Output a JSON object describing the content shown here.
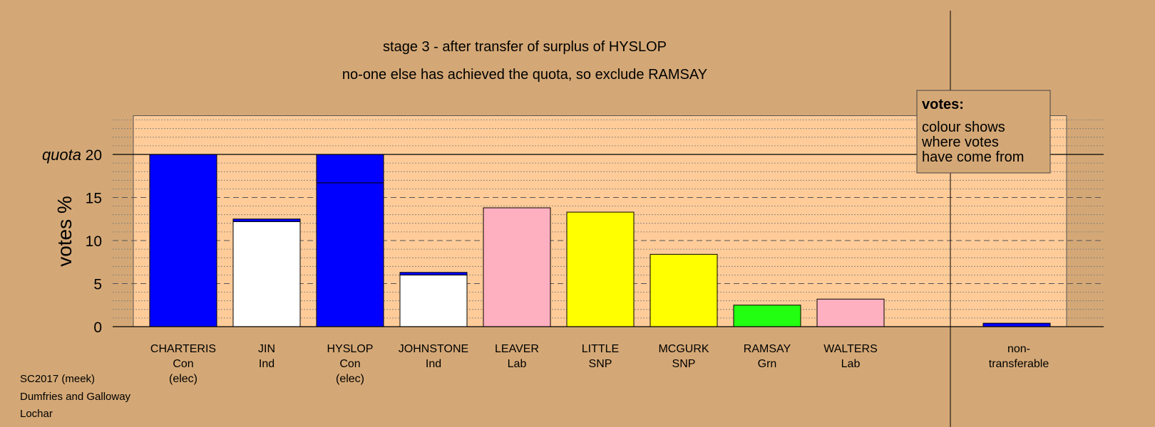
{
  "chart_data": {
    "type": "bar",
    "title": "stage 3 - after transfer of surplus of HYSLOP",
    "subtitle": "no-one else has achieved the quota, so exclude RAMSAY",
    "ylabel": "votes %",
    "quota_label": "quota",
    "quota": 20,
    "ylim": [
      0,
      24.5
    ],
    "yticks": [
      0,
      5,
      10,
      15,
      20
    ],
    "legend": {
      "title": "votes:",
      "lines": [
        "colour shows",
        "where votes",
        "have come from"
      ]
    },
    "colors": {
      "background": "#D4A876",
      "plot_bg": "#FFCC99",
      "Con": "#0000FF",
      "Ind": "#FFFFFF",
      "Lab": "#FFB0C0",
      "SNP": "#FFFF00",
      "Grn": "#22FF11"
    },
    "bars": [
      {
        "name": "CHARTERIS",
        "party": "Con",
        "status": "(elec)",
        "segments": [
          {
            "value": 20.0,
            "color": "#0000FF"
          }
        ]
      },
      {
        "name": "JIN",
        "party": "Ind",
        "status": "",
        "segments": [
          {
            "value": 12.2,
            "color": "#FFFFFF"
          },
          {
            "value": 0.3,
            "color": "#0000FF"
          }
        ]
      },
      {
        "name": "HYSLOP",
        "party": "Con",
        "status": "(elec)",
        "segments": [
          {
            "value": 16.7,
            "color": "#0000FF"
          },
          {
            "value": 3.3,
            "color": "#0000FF"
          }
        ]
      },
      {
        "name": "JOHNSTONE",
        "party": "Ind",
        "status": "",
        "segments": [
          {
            "value": 6.0,
            "color": "#FFFFFF"
          },
          {
            "value": 0.3,
            "color": "#0000FF"
          }
        ]
      },
      {
        "name": "LEAVER",
        "party": "Lab",
        "status": "",
        "segments": [
          {
            "value": 13.8,
            "color": "#FFB0C0"
          }
        ]
      },
      {
        "name": "LITTLE",
        "party": "SNP",
        "status": "",
        "segments": [
          {
            "value": 13.3,
            "color": "#FFFF00"
          }
        ]
      },
      {
        "name": "MCGURK",
        "party": "SNP",
        "status": "",
        "segments": [
          {
            "value": 8.4,
            "color": "#FFFF00"
          }
        ]
      },
      {
        "name": "RAMSAY",
        "party": "Grn",
        "status": "",
        "segments": [
          {
            "value": 2.5,
            "color": "#22FF11"
          }
        ]
      },
      {
        "name": "WALTERS",
        "party": "Lab",
        "status": "",
        "segments": [
          {
            "value": 3.2,
            "color": "#FFB0C0"
          }
        ]
      }
    ],
    "nontransferable": {
      "label_line1": "non-",
      "label_line2": "transferable",
      "value": 0.4,
      "color": "#0000FF"
    }
  },
  "footer": {
    "line1": "SC2017 (meek)",
    "line2": "Dumfries and Galloway",
    "line3": "Lochar"
  }
}
